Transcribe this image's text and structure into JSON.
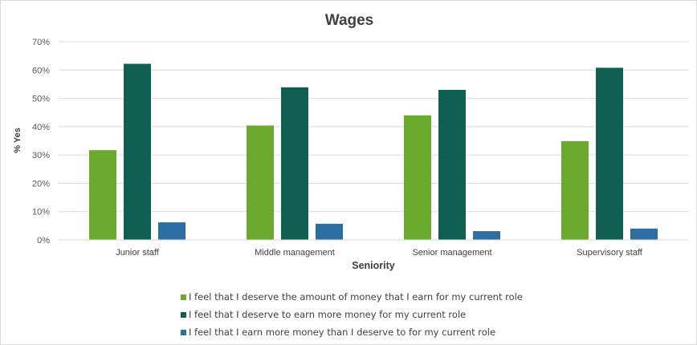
{
  "chart_data": {
    "type": "bar",
    "title": "Wages",
    "xlabel": "Seniority",
    "ylabel": "% Yes",
    "ylim": [
      0,
      70
    ],
    "yticks": [
      "0%",
      "10%",
      "20%",
      "30%",
      "40%",
      "50%",
      "60%",
      "70%"
    ],
    "categories": [
      "Junior staff",
      "Middle management",
      "Senior management",
      "Supervisory staff"
    ],
    "series": [
      {
        "name": "I feel that I deserve the amount of money that I earn  for my current role",
        "color": "#6aaa2e",
        "values": [
          31.7,
          40.4,
          44.0,
          34.9
        ]
      },
      {
        "name": "I feel that I deserve to earn more money for my current role",
        "color": "#0f5f52",
        "values": [
          62.2,
          53.9,
          53.0,
          60.8
        ]
      },
      {
        "name": "I feel that I earn more money than I deserve to for my current role",
        "color": "#2e6fa3",
        "values": [
          6.2,
          5.7,
          3.1,
          4.0
        ]
      }
    ],
    "grid": true,
    "legend_position": "bottom"
  }
}
